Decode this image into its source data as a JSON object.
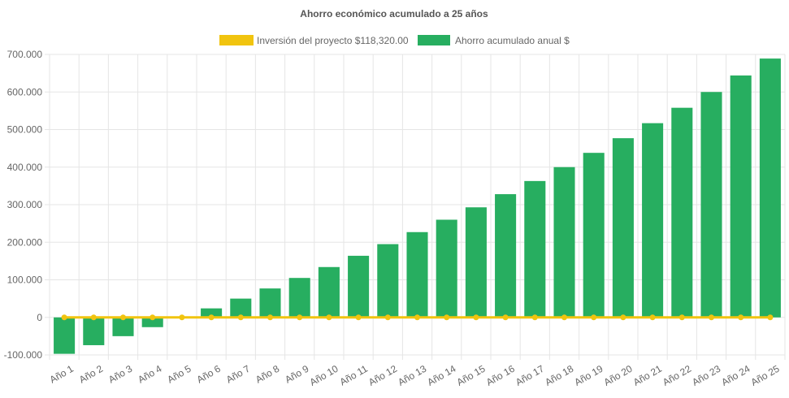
{
  "chart_data": {
    "type": "bar",
    "title": "Ahorro económico acumulado a 25 años",
    "xlabel": "",
    "ylabel": "",
    "categories": [
      "Año 1",
      "Año 2",
      "Año 3",
      "Año 4",
      "Año 5",
      "Año 6",
      "Año 7",
      "Año 8",
      "Año 9",
      "Año 10",
      "Año 11",
      "Año 12",
      "Año 13",
      "Año 14",
      "Año 15",
      "Año 16",
      "Año 17",
      "Año 18",
      "Año 19",
      "Año 20",
      "Año 21",
      "Año 22",
      "Año 23",
      "Año 24",
      "Año 25"
    ],
    "ylim": [
      -100000,
      700000
    ],
    "y_ticks": [
      700000,
      600000,
      500000,
      400000,
      300000,
      200000,
      100000,
      0,
      -100000
    ],
    "y_tick_labels": [
      "700.000",
      "600.000",
      "500.000",
      "400.000",
      "300.000",
      "200.000",
      "100.000",
      "0",
      "-100.000"
    ],
    "grid": true,
    "legend_position": "top",
    "series": [
      {
        "name": "Inversión del proyecto $118,320.00",
        "type": "line",
        "color": "#f1c40f",
        "values": [
          0,
          0,
          0,
          0,
          0,
          0,
          0,
          0,
          0,
          0,
          0,
          0,
          0,
          0,
          0,
          0,
          0,
          0,
          0,
          0,
          0,
          0,
          0,
          0,
          0
        ]
      },
      {
        "name": "Ahorro acumulado anual $",
        "type": "bar",
        "color": "#27ae60",
        "values": [
          -97000,
          -74000,
          -50000,
          -26000,
          -1000,
          24000,
          50000,
          77000,
          105000,
          134000,
          164000,
          195000,
          227000,
          260000,
          293000,
          328000,
          363000,
          400000,
          438000,
          477000,
          517000,
          558000,
          600000,
          644000,
          689000
        ]
      }
    ]
  }
}
